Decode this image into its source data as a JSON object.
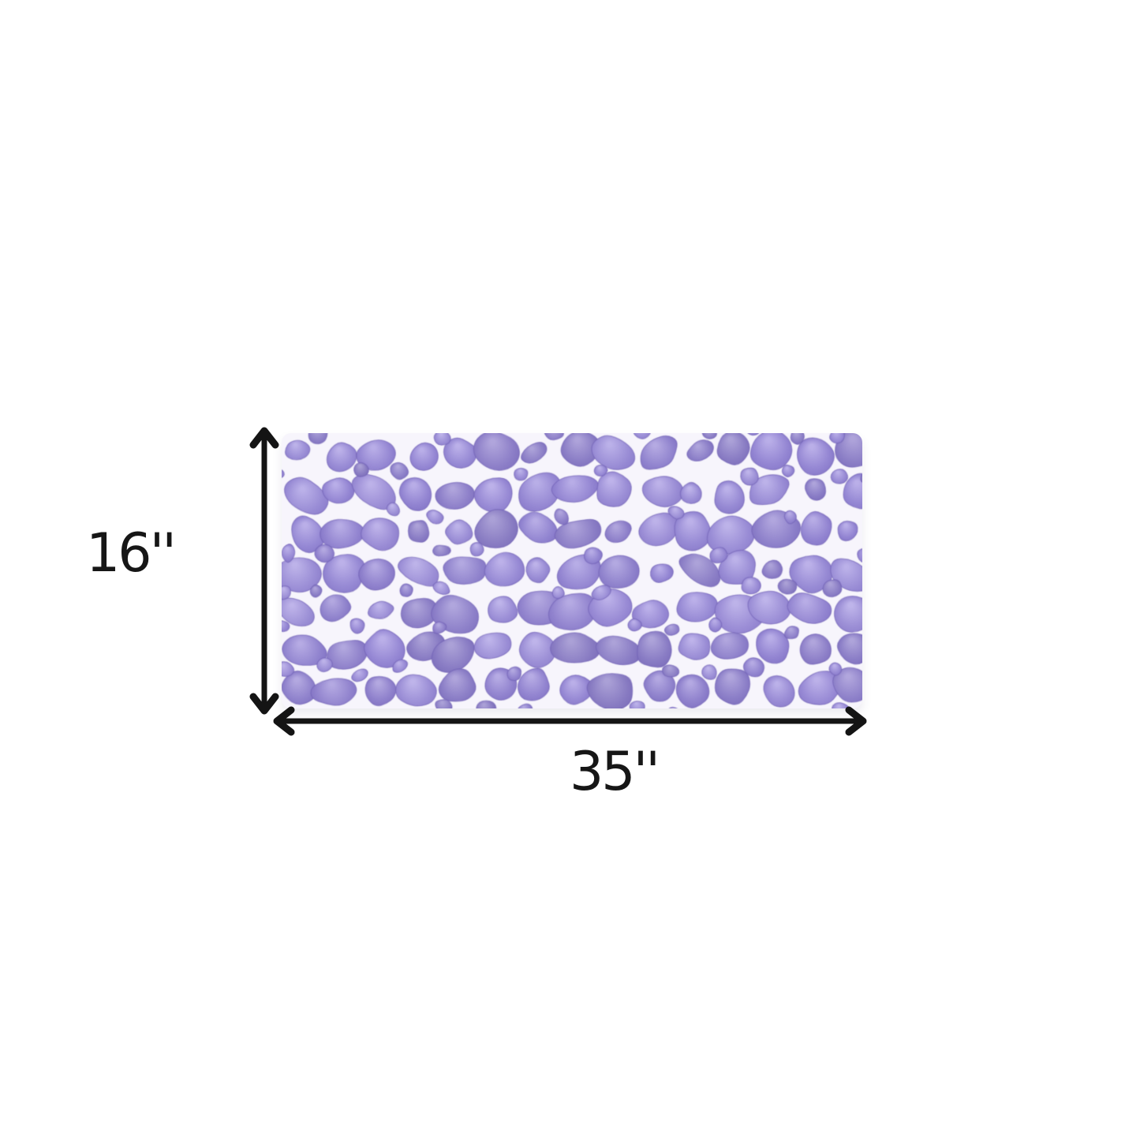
{
  "diagram": {
    "height_label": "16''",
    "width_label": "35''",
    "colors": {
      "background": "#ffffff",
      "arrow": "#141414",
      "label_text": "#161616",
      "pebble_base": "#9486d3",
      "pebble_light": "#b9aee8",
      "pebble_dark": "#7c6cc2",
      "pebble_outline": "#6f60b5",
      "mat_gap": "#f7f5fc"
    }
  }
}
